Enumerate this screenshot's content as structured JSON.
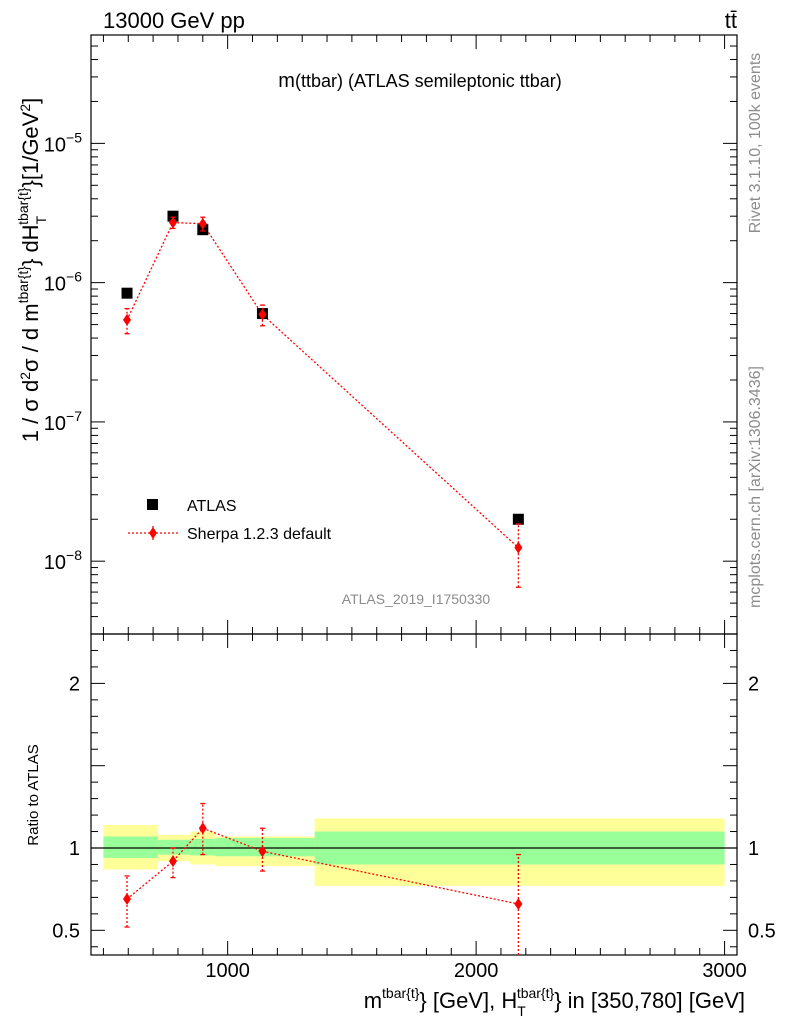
{
  "header": {
    "left": "13000 GeV pp",
    "right": "tt̄"
  },
  "side": {
    "top": "Rivet 3.1.10,  100k events",
    "bottom": "mcplots.cern.ch [arXiv:1306.3436]"
  },
  "chart_data": [
    {
      "type": "scatter",
      "title_main": "m",
      "title_rest": "(ttbar) (ATLAS semileptonic ttbar)",
      "watermark": "ATLAS_2019_I1750330",
      "ylabel": "1 / σ d²σ / d m^{tbar{t}} dH_T^{tbar{t}} [1/GeV²]",
      "yscale": "log",
      "ylim": [
        3e-09,
        6e-05
      ],
      "xlim": [
        450,
        3050
      ],
      "yticks": [
        {
          "value": 1e-05,
          "mant": "10",
          "exp": "−5"
        },
        {
          "value": 1e-06,
          "mant": "10",
          "exp": "−6"
        },
        {
          "value": 1e-07,
          "mant": "10",
          "exp": "−7"
        },
        {
          "value": 1e-08,
          "mant": "10",
          "exp": "−8"
        }
      ],
      "legend": {
        "placement": "lower-left",
        "entries": [
          "ATLAS",
          "Sherpa 1.2.3 default"
        ]
      },
      "series": [
        {
          "name": "ATLAS",
          "color": "#000000",
          "marker": "square",
          "x": [
            595,
            780,
            900,
            1140,
            2170
          ],
          "y": [
            8.4e-07,
            3e-06,
            2.4e-06,
            6e-07,
            2e-08
          ]
        },
        {
          "name": "Sherpa 1.2.3 default",
          "color": "#ff0000",
          "marker": "diamond",
          "x": [
            595,
            780,
            900,
            1140,
            2170
          ],
          "y": [
            5.4e-07,
            2.7e-06,
            2.65e-06,
            5.9e-07,
            1.25e-08
          ],
          "y_low": [
            4.3e-07,
            2.45e-06,
            2.35e-06,
            4.9e-07,
            6.5e-09
          ],
          "y_high": [
            6.5e-07,
            2.95e-06,
            2.95e-06,
            6.9e-07,
            1.85e-08
          ]
        }
      ]
    },
    {
      "type": "scatter",
      "ylabel": "Ratio to ATLAS",
      "xlabel": "m^{tbar{t}} [GeV], H_T^{tbar{t}} in [350,780] [GeV]",
      "ylim": [
        0.35,
        2.3
      ],
      "xlim": [
        450,
        3050
      ],
      "yticks": [
        {
          "value": 0.5,
          "label": "0.5"
        },
        {
          "value": 1,
          "label": "1"
        },
        {
          "value": 2,
          "label": "2"
        }
      ],
      "xticks": [
        {
          "value": 1000,
          "label": "1000"
        },
        {
          "value": 2000,
          "label": "2000"
        },
        {
          "value": 3000,
          "label": "3000"
        }
      ],
      "bands": [
        {
          "x0": 500,
          "x1": 720,
          "inner": [
            0.94,
            1.07
          ],
          "outer": [
            0.87,
            1.14
          ]
        },
        {
          "x0": 720,
          "x1": 850,
          "inner": [
            0.96,
            1.05
          ],
          "outer": [
            0.92,
            1.08
          ]
        },
        {
          "x0": 850,
          "x1": 950,
          "inner": [
            0.955,
            1.055
          ],
          "outer": [
            0.9,
            1.1
          ]
        },
        {
          "x0": 950,
          "x1": 1350,
          "inner": [
            0.95,
            1.06
          ],
          "outer": [
            0.89,
            1.07
          ]
        },
        {
          "x0": 1350,
          "x1": 3000,
          "inner": [
            0.9,
            1.1
          ],
          "outer": [
            0.77,
            1.18
          ]
        }
      ],
      "band_colors": {
        "inner": "#99ff99",
        "outer": "#ffff99"
      },
      "series": [
        {
          "name": "Sherpa 1.2.3 default",
          "color": "#ff0000",
          "marker": "diamond",
          "x": [
            595,
            780,
            900,
            1140,
            2170
          ],
          "y": [
            0.69,
            0.92,
            1.12,
            0.98,
            0.66
          ],
          "y_low": [
            0.52,
            0.82,
            0.96,
            0.86,
            0.3
          ],
          "y_high": [
            0.83,
            1.0,
            1.27,
            1.12,
            0.96
          ]
        }
      ]
    }
  ]
}
